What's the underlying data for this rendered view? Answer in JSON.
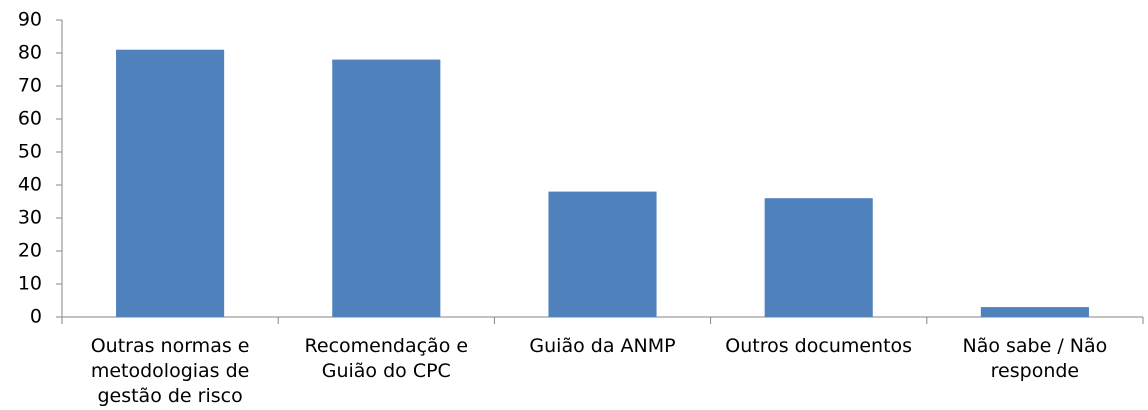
{
  "chart_data": {
    "type": "bar",
    "categories": [
      "Outras normas e metodologias de gestão de risco",
      "Recomendação e Guião do CPC",
      "Guião da ANMP",
      "Outros documentos",
      "Não sabe / Não responde"
    ],
    "values": [
      81,
      78,
      38,
      36,
      3
    ],
    "color": "#4f81bd",
    "ylim": [
      0,
      90
    ],
    "yticks": [
      0,
      10,
      20,
      30,
      40,
      50,
      60,
      70,
      80,
      90
    ],
    "grid": false
  }
}
